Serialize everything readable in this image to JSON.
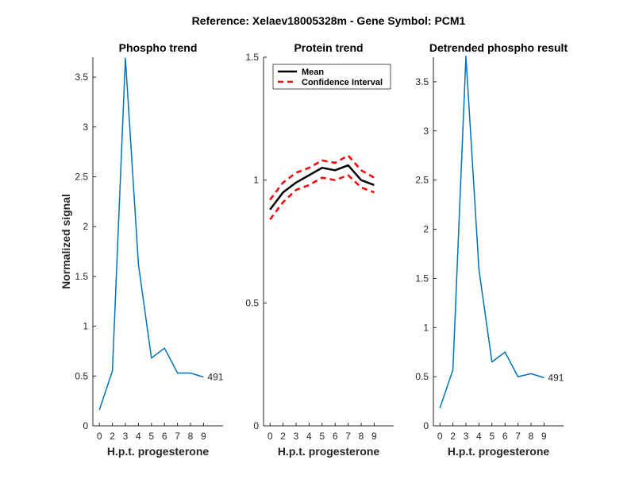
{
  "figure_title": "Reference:  Xelaev18005328m - Gene Symbol:  PCM1",
  "chart_data": [
    {
      "type": "line",
      "title": "Phospho trend",
      "xlabel": "H.p.t. progesterone",
      "ylabel": "Normalized signal",
      "x_tick_labels": [
        "0",
        "2",
        "3",
        "4",
        "5",
        "6",
        "7",
        "8",
        "9"
      ],
      "xlim": [
        -0.5,
        9.5
      ],
      "ylim": [
        0,
        3.7
      ],
      "y_ticks": [
        0,
        0.5,
        1,
        1.5,
        2,
        2.5,
        3,
        3.5
      ],
      "y_tick_labels": [
        "0",
        "0.5",
        "1",
        "1.5",
        "2",
        "2.5",
        "3",
        "3.5"
      ],
      "series": [
        {
          "name": "phospho",
          "color": "#0072BD",
          "x": [
            0,
            1,
            2,
            3,
            4,
            5,
            6,
            7,
            8
          ],
          "values": [
            0.16,
            0.55,
            3.69,
            1.62,
            0.68,
            0.78,
            0.53,
            0.53,
            0.49
          ]
        }
      ],
      "annotation": "491"
    },
    {
      "type": "line",
      "title": "Protein trend",
      "xlabel": "H.p.t. progesterone",
      "ylabel": "",
      "x_tick_labels": [
        "0",
        "2",
        "3",
        "4",
        "5",
        "6",
        "7",
        "8",
        "9"
      ],
      "xlim": [
        -0.5,
        9.5
      ],
      "ylim": [
        0,
        1.5
      ],
      "y_ticks": [
        0,
        0.5,
        1,
        1.5
      ],
      "y_tick_labels": [
        "0",
        "0.5",
        "1",
        "1.5"
      ],
      "legend": {
        "position": "top-left",
        "entries": [
          "Mean",
          "Confidence Interval"
        ]
      },
      "series": [
        {
          "name": "Mean",
          "color": "#000000",
          "style": "solid",
          "x": [
            0,
            1,
            2,
            3,
            4,
            5,
            6,
            7,
            8
          ],
          "values": [
            0.88,
            0.95,
            0.99,
            1.02,
            1.05,
            1.04,
            1.06,
            1.0,
            0.98
          ]
        },
        {
          "name": "Confidence Interval upper",
          "color": "#FF0000",
          "style": "dashed",
          "x": [
            0,
            1,
            2,
            3,
            4,
            5,
            6,
            7,
            8
          ],
          "values": [
            0.92,
            0.99,
            1.03,
            1.05,
            1.08,
            1.07,
            1.1,
            1.04,
            1.01
          ]
        },
        {
          "name": "Confidence Interval lower",
          "color": "#FF0000",
          "style": "dashed",
          "x": [
            0,
            1,
            2,
            3,
            4,
            5,
            6,
            7,
            8
          ],
          "values": [
            0.84,
            0.91,
            0.96,
            0.98,
            1.01,
            1.0,
            1.02,
            0.97,
            0.95
          ]
        }
      ]
    },
    {
      "type": "line",
      "title": "Detrended phospho result",
      "xlabel": "H.p.t. progesterone",
      "ylabel": "",
      "x_tick_labels": [
        "0",
        "2",
        "3",
        "4",
        "5",
        "6",
        "7",
        "8",
        "9"
      ],
      "xlim": [
        -0.5,
        9.5
      ],
      "ylim": [
        0,
        3.75
      ],
      "y_ticks": [
        0,
        0.5,
        1,
        1.5,
        2,
        2.5,
        3,
        3.5
      ],
      "y_tick_labels": [
        "0",
        "0.5",
        "1",
        "1.5",
        "2",
        "2.5",
        "3",
        "3.5"
      ],
      "series": [
        {
          "name": "detrended",
          "color": "#0072BD",
          "x": [
            0,
            1,
            2,
            3,
            4,
            5,
            6,
            7,
            8
          ],
          "values": [
            0.18,
            0.57,
            3.76,
            1.59,
            0.65,
            0.75,
            0.5,
            0.53,
            0.49
          ]
        }
      ],
      "annotation": "491"
    }
  ]
}
